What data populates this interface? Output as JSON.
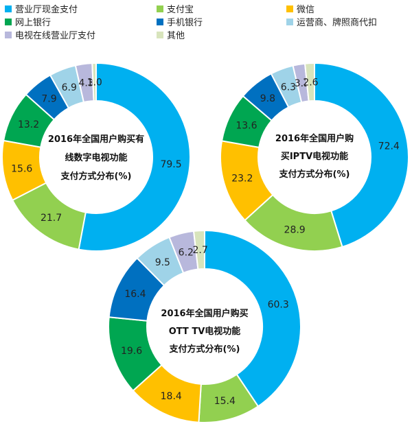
{
  "categories": [
    {
      "key": "hall",
      "label": "营业厅现金支付",
      "color": "#00b0f0"
    },
    {
      "key": "alipay",
      "label": "支付宝",
      "color": "#92d050"
    },
    {
      "key": "wechat",
      "label": "微信",
      "color": "#ffc000"
    },
    {
      "key": "online_bank",
      "label": "网上银行",
      "color": "#00a651"
    },
    {
      "key": "mobile_bank",
      "label": "手机银行",
      "color": "#0070c0"
    },
    {
      "key": "operator",
      "label": "运营商、牌照商代扣",
      "color": "#9fd3e8"
    },
    {
      "key": "tv_hall",
      "label": "电视在线营业厅支付",
      "color": "#b8b8dc"
    },
    {
      "key": "other",
      "label": "其他",
      "color": "#d8e4bc"
    }
  ],
  "chart_data": [
    {
      "type": "pie",
      "style": "donut",
      "title_lines": [
        "2016年全国用户购买有",
        "线数字电视功能",
        "支付方式分布(%)"
      ],
      "values": [
        79.5,
        21.7,
        15.6,
        13.2,
        7.9,
        6.9,
        4.3,
        1.0
      ],
      "labels": [
        "79.5",
        "21.7",
        "15.6",
        "13.2",
        "7.9",
        "6.9",
        "4.3",
        "1.0"
      ]
    },
    {
      "type": "pie",
      "style": "donut",
      "title_lines": [
        "2016年全国用户购",
        "买IPTV电视功能",
        "支付方式分布(%)"
      ],
      "values": [
        72.4,
        28.9,
        23.2,
        13.6,
        9.8,
        6.3,
        3.3,
        2.6
      ],
      "labels": [
        "72.4",
        "28.9",
        "23.2",
        "13.6",
        "9.8",
        "6.3",
        "3.3",
        "2.6"
      ]
    },
    {
      "type": "pie",
      "style": "donut",
      "title_lines": [
        "2016年全国用户购买",
        "OTT TV电视功能",
        "支付方式分布(%)"
      ],
      "values": [
        60.3,
        15.4,
        18.4,
        19.6,
        16.4,
        9.5,
        6.2,
        2.7
      ],
      "labels": [
        "60.3",
        "15.4",
        "18.4",
        "19.6",
        "16.4",
        "9.5",
        "6.2",
        "2.7"
      ]
    }
  ]
}
